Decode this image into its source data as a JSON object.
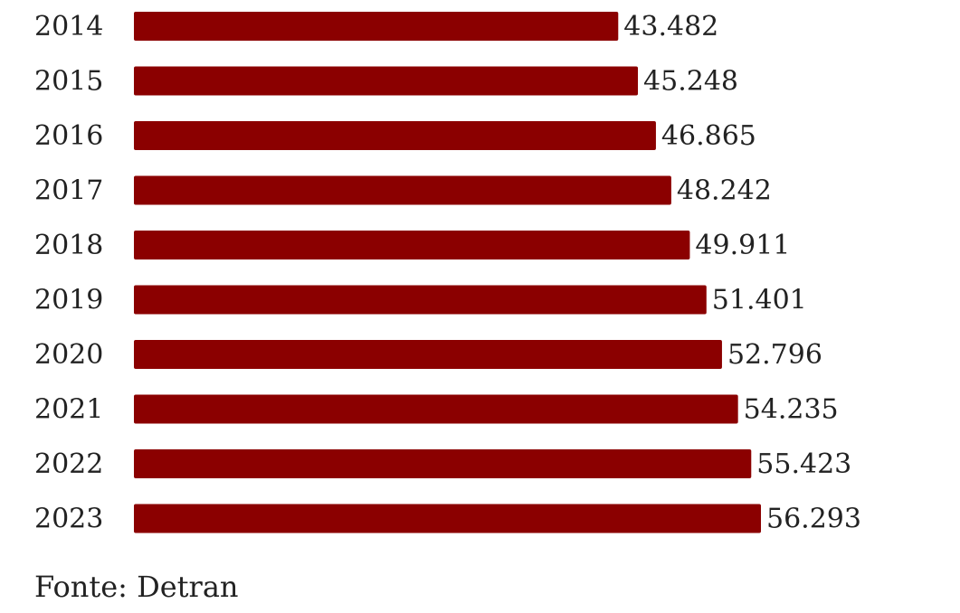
{
  "chart_data": {
    "type": "bar",
    "orientation": "horizontal",
    "categories": [
      "2014",
      "2015",
      "2016",
      "2017",
      "2018",
      "2019",
      "2020",
      "2021",
      "2022",
      "2023"
    ],
    "values": [
      43482,
      45248,
      46865,
      48242,
      49911,
      51401,
      52796,
      54235,
      55423,
      56293
    ],
    "value_labels": [
      "43.482",
      "45.248",
      "46.865",
      "48.242",
      "49.911",
      "51.401",
      "52.796",
      "54.235",
      "55.423",
      "56.293"
    ],
    "bar_color": "#8b0000",
    "xlim": [
      0,
      56293
    ],
    "grid": false,
    "legend": "none"
  },
  "source": "Fonte: Detran"
}
